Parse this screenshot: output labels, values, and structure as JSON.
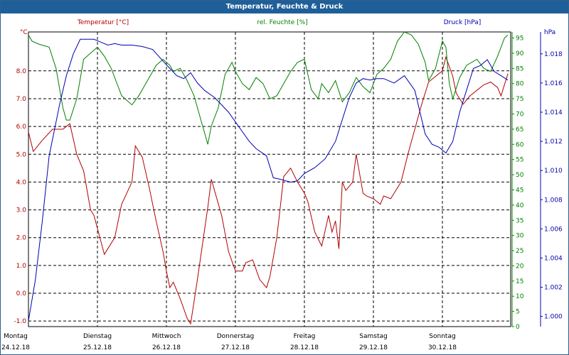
{
  "chart_data": {
    "type": "line",
    "title": "Temperatur, Feuchte & Druck",
    "colors": {
      "temperature": "#b00000",
      "humidity": "#008000",
      "pressure": "#0000b0"
    },
    "grid": true,
    "x_labels": [
      {
        "day": "Montag",
        "date": "24.12.18"
      },
      {
        "day": "Dienstag",
        "date": "25.12.18"
      },
      {
        "day": "Mittwoch",
        "date": "26.12.18"
      },
      {
        "day": "Donnerstag",
        "date": "27.12.18"
      },
      {
        "day": "Freitag",
        "date": "28.12.18"
      },
      {
        "day": "Samstag",
        "date": "29.12.18"
      },
      {
        "day": "Sonntag",
        "date": "30.12.18"
      }
    ],
    "axes": {
      "temperature": {
        "unit": "°C",
        "range": [
          -1.2,
          9.4
        ],
        "ticks": [
          -1.0,
          0.0,
          1.0,
          2.0,
          3.0,
          4.0,
          5.0,
          6.0,
          7.0,
          8.0
        ]
      },
      "humidity": {
        "range": [
          0,
          97
        ],
        "ticks": [
          0,
          5,
          10,
          15,
          20,
          25,
          30,
          35,
          40,
          45,
          50,
          55,
          60,
          65,
          70,
          75,
          80,
          85,
          90,
          95
        ]
      },
      "pressure": {
        "unit": "hPa",
        "range": [
          999.3,
          1019.5
        ],
        "ticks": [
          1000.0,
          1002.0,
          1004.0,
          1006.0,
          1008.0,
          1010.0,
          1012.0,
          1014.0,
          1016.0,
          1018.0
        ]
      }
    },
    "series": [
      {
        "key": "temperature",
        "name": "Temperatur [°C]",
        "values": [
          [
            0,
            5.8
          ],
          [
            0.07,
            5.1
          ],
          [
            0.2,
            5.5
          ],
          [
            0.35,
            5.9
          ],
          [
            0.5,
            5.9
          ],
          [
            0.6,
            6.1
          ],
          [
            0.7,
            5.0
          ],
          [
            0.8,
            4.4
          ],
          [
            0.9,
            3.0
          ],
          [
            0.95,
            2.8
          ],
          [
            1.1,
            1.4
          ],
          [
            1.25,
            2.0
          ],
          [
            1.35,
            3.2
          ],
          [
            1.5,
            4.0
          ],
          [
            1.55,
            5.3
          ],
          [
            1.65,
            4.9
          ],
          [
            1.75,
            3.8
          ],
          [
            1.85,
            2.6
          ],
          [
            1.95,
            1.5
          ],
          [
            2.0,
            0.8
          ],
          [
            2.05,
            0.2
          ],
          [
            2.1,
            0.4
          ],
          [
            2.2,
            -0.2
          ],
          [
            2.3,
            -0.9
          ],
          [
            2.35,
            -1.1
          ],
          [
            2.45,
            0.5
          ],
          [
            2.6,
            3.1
          ],
          [
            2.65,
            4.1
          ],
          [
            2.8,
            2.8
          ],
          [
            2.9,
            1.5
          ],
          [
            3.0,
            0.8
          ],
          [
            3.1,
            0.8
          ],
          [
            3.15,
            1.1
          ],
          [
            3.25,
            1.2
          ],
          [
            3.35,
            0.5
          ],
          [
            3.45,
            0.2
          ],
          [
            3.5,
            0.6
          ],
          [
            3.6,
            2.0
          ],
          [
            3.7,
            4.2
          ],
          [
            3.8,
            4.5
          ],
          [
            3.9,
            4.0
          ],
          [
            4.0,
            3.6
          ],
          [
            4.05,
            3.3
          ],
          [
            4.15,
            2.2
          ],
          [
            4.25,
            1.7
          ],
          [
            4.35,
            2.8
          ],
          [
            4.4,
            2.2
          ],
          [
            4.45,
            2.6
          ],
          [
            4.5,
            1.6
          ],
          [
            4.55,
            4.0
          ],
          [
            4.6,
            3.7
          ],
          [
            4.7,
            4.0
          ],
          [
            4.75,
            5.0
          ],
          [
            4.85,
            3.6
          ],
          [
            4.9,
            3.5
          ],
          [
            5.0,
            3.4
          ],
          [
            5.1,
            3.2
          ],
          [
            5.15,
            3.5
          ],
          [
            5.25,
            3.4
          ],
          [
            5.3,
            3.6
          ],
          [
            5.4,
            4.0
          ],
          [
            5.5,
            5.0
          ],
          [
            5.6,
            5.9
          ],
          [
            5.7,
            6.8
          ],
          [
            5.8,
            7.6
          ],
          [
            5.9,
            7.8
          ],
          [
            6.0,
            8.0
          ],
          [
            6.05,
            8.5
          ],
          [
            6.15,
            7.8
          ],
          [
            6.2,
            7.2
          ],
          [
            6.3,
            6.8
          ],
          [
            6.4,
            7.1
          ],
          [
            6.5,
            7.3
          ],
          [
            6.6,
            7.5
          ],
          [
            6.7,
            7.6
          ],
          [
            6.8,
            7.4
          ],
          [
            6.85,
            7.1
          ],
          [
            6.95,
            7.9
          ]
        ]
      },
      {
        "key": "humidity",
        "name": "rel. Feuchte [%]",
        "values": [
          [
            0,
            96
          ],
          [
            0.05,
            94
          ],
          [
            0.15,
            93
          ],
          [
            0.3,
            92
          ],
          [
            0.4,
            85
          ],
          [
            0.5,
            72
          ],
          [
            0.55,
            68
          ],
          [
            0.6,
            68
          ],
          [
            0.7,
            75
          ],
          [
            0.8,
            88
          ],
          [
            0.9,
            90
          ],
          [
            1.0,
            92
          ],
          [
            1.1,
            89
          ],
          [
            1.2,
            85
          ],
          [
            1.3,
            79
          ],
          [
            1.35,
            76
          ],
          [
            1.5,
            73
          ],
          [
            1.6,
            76
          ],
          [
            1.75,
            82
          ],
          [
            1.85,
            86
          ],
          [
            1.95,
            88
          ],
          [
            2.05,
            86
          ],
          [
            2.1,
            84
          ],
          [
            2.2,
            85
          ],
          [
            2.3,
            81
          ],
          [
            2.4,
            76
          ],
          [
            2.5,
            68
          ],
          [
            2.6,
            60
          ],
          [
            2.65,
            66
          ],
          [
            2.75,
            72
          ],
          [
            2.85,
            83
          ],
          [
            2.95,
            87
          ],
          [
            3.0,
            84
          ],
          [
            3.1,
            80
          ],
          [
            3.2,
            78
          ],
          [
            3.3,
            82
          ],
          [
            3.4,
            80
          ],
          [
            3.5,
            75
          ],
          [
            3.6,
            76
          ],
          [
            3.7,
            80
          ],
          [
            3.8,
            84
          ],
          [
            3.9,
            87
          ],
          [
            4.0,
            88
          ],
          [
            4.1,
            78
          ],
          [
            4.2,
            75
          ],
          [
            4.25,
            80
          ],
          [
            4.35,
            77
          ],
          [
            4.45,
            81
          ],
          [
            4.55,
            74
          ],
          [
            4.65,
            77
          ],
          [
            4.75,
            82
          ],
          [
            4.85,
            79
          ],
          [
            4.95,
            77
          ],
          [
            5.05,
            83
          ],
          [
            5.15,
            85
          ],
          [
            5.25,
            88
          ],
          [
            5.35,
            94
          ],
          [
            5.45,
            97
          ],
          [
            5.55,
            96
          ],
          [
            5.65,
            93
          ],
          [
            5.75,
            87
          ],
          [
            5.8,
            81
          ],
          [
            5.9,
            85
          ],
          [
            6.0,
            94
          ],
          [
            6.05,
            92
          ],
          [
            6.1,
            80
          ],
          [
            6.15,
            75
          ],
          [
            6.25,
            82
          ],
          [
            6.35,
            86
          ],
          [
            6.5,
            88
          ],
          [
            6.6,
            85
          ],
          [
            6.7,
            84
          ],
          [
            6.8,
            89
          ],
          [
            6.9,
            95
          ],
          [
            6.95,
            96
          ]
        ]
      },
      {
        "key": "pressure",
        "name": "Druck [hPa]",
        "values": [
          [
            0,
            999.7
          ],
          [
            0.1,
            1002.5
          ],
          [
            0.2,
            1006.5
          ],
          [
            0.3,
            1011.0
          ],
          [
            0.45,
            1014.5
          ],
          [
            0.55,
            1016.5
          ],
          [
            0.65,
            1018.0
          ],
          [
            0.75,
            1019.0
          ],
          [
            0.85,
            1019.0
          ],
          [
            0.95,
            1019.0
          ],
          [
            1.05,
            1018.8
          ],
          [
            1.15,
            1018.6
          ],
          [
            1.25,
            1018.7
          ],
          [
            1.35,
            1018.6
          ],
          [
            1.5,
            1018.6
          ],
          [
            1.65,
            1018.5
          ],
          [
            1.8,
            1018.3
          ],
          [
            1.95,
            1017.5
          ],
          [
            2.05,
            1017.0
          ],
          [
            2.15,
            1016.5
          ],
          [
            2.25,
            1016.3
          ],
          [
            2.35,
            1016.7
          ],
          [
            2.45,
            1016.0
          ],
          [
            2.55,
            1015.5
          ],
          [
            2.7,
            1015.0
          ],
          [
            2.9,
            1014.0
          ],
          [
            3.05,
            1013.0
          ],
          [
            3.2,
            1012.0
          ],
          [
            3.3,
            1011.5
          ],
          [
            3.45,
            1011.0
          ],
          [
            3.55,
            1009.5
          ],
          [
            3.65,
            1009.4
          ],
          [
            3.8,
            1009.2
          ],
          [
            3.9,
            1009.3
          ],
          [
            4.0,
            1009.8
          ],
          [
            4.15,
            1010.2
          ],
          [
            4.3,
            1010.8
          ],
          [
            4.45,
            1012.0
          ],
          [
            4.55,
            1013.5
          ],
          [
            4.65,
            1015.0
          ],
          [
            4.75,
            1016.0
          ],
          [
            4.85,
            1016.3
          ],
          [
            4.95,
            1016.2
          ],
          [
            5.05,
            1016.3
          ],
          [
            5.15,
            1016.3
          ],
          [
            5.3,
            1016.0
          ],
          [
            5.45,
            1016.5
          ],
          [
            5.6,
            1015.5
          ],
          [
            5.75,
            1012.5
          ],
          [
            5.85,
            1011.8
          ],
          [
            5.95,
            1011.6
          ],
          [
            6.05,
            1011.2
          ],
          [
            6.15,
            1012.0
          ],
          [
            6.25,
            1014.0
          ],
          [
            6.35,
            1015.5
          ],
          [
            6.45,
            1017.0
          ],
          [
            6.55,
            1017.2
          ],
          [
            6.65,
            1017.6
          ],
          [
            6.75,
            1016.8
          ],
          [
            6.85,
            1016.5
          ],
          [
            6.95,
            1016.2
          ]
        ]
      }
    ]
  }
}
